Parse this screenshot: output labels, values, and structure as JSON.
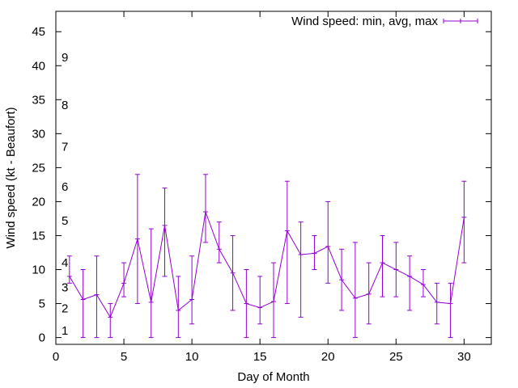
{
  "chart_data": {
    "type": "line",
    "error_bars": true,
    "xlabel": "Day of Month",
    "ylabel": "Wind speed (kt - Beaufort)",
    "xlim": [
      0,
      32
    ],
    "ylim": [
      -1,
      48
    ],
    "xticks": [
      "0",
      "5",
      "10",
      "15",
      "20",
      "25",
      "30"
    ],
    "yticks": [
      "0",
      "5",
      "10",
      "15",
      "20",
      "25",
      "30",
      "35",
      "40",
      "45"
    ],
    "beaufort_labels": [
      {
        "label": "1",
        "y": 1
      },
      {
        "label": "2",
        "y": 4.3
      },
      {
        "label": "3",
        "y": 7.4
      },
      {
        "label": "4",
        "y": 11
      },
      {
        "label": "5",
        "y": 17.2
      },
      {
        "label": "6",
        "y": 22.2
      },
      {
        "label": "7",
        "y": 28.1
      },
      {
        "label": "8",
        "y": 34.2
      },
      {
        "label": "9",
        "y": 41.2
      }
    ],
    "legend": {
      "placement": "top-right"
    },
    "color": "#9400d3",
    "series": [
      {
        "name": "Wind speed: min, avg, max",
        "points": [
          {
            "x": 1,
            "min": 8,
            "avg": 9,
            "max": 12
          },
          {
            "x": 2,
            "min": 0,
            "avg": 5.6,
            "max": 10
          },
          {
            "x": 3,
            "min": 0,
            "avg": 6.3,
            "max": 12
          },
          {
            "x": 4,
            "min": 0,
            "avg": 3,
            "max": 5
          },
          {
            "x": 5,
            "min": 6,
            "avg": 8,
            "max": 11
          },
          {
            "x": 6,
            "min": 5,
            "avg": 14.5,
            "max": 24
          },
          {
            "x": 7,
            "min": 0,
            "avg": 5.2,
            "max": 16
          },
          {
            "x": 8,
            "min": 9,
            "avg": 16.5,
            "max": 22
          },
          {
            "x": 9,
            "min": 0,
            "avg": 4,
            "max": 9
          },
          {
            "x": 10,
            "min": 2,
            "avg": 5.6,
            "max": 12
          },
          {
            "x": 11,
            "min": 14,
            "avg": 18.5,
            "max": 24
          },
          {
            "x": 12,
            "min": 11,
            "avg": 13,
            "max": 17
          },
          {
            "x": 13,
            "min": 4,
            "avg": 9.5,
            "max": 15
          },
          {
            "x": 14,
            "min": 0,
            "avg": 5,
            "max": 10
          },
          {
            "x": 15,
            "min": 2,
            "avg": 4.4,
            "max": 9
          },
          {
            "x": 16,
            "min": 0,
            "avg": 5.3,
            "max": 11
          },
          {
            "x": 17,
            "min": 5,
            "avg": 15.7,
            "max": 23
          },
          {
            "x": 18,
            "min": 3,
            "avg": 12.2,
            "max": 17
          },
          {
            "x": 19,
            "min": 10,
            "avg": 12.4,
            "max": 15
          },
          {
            "x": 20,
            "min": 8,
            "avg": 13.4,
            "max": 20
          },
          {
            "x": 21,
            "min": 4,
            "avg": 8.5,
            "max": 13
          },
          {
            "x": 22,
            "min": 0,
            "avg": 5.8,
            "max": 14
          },
          {
            "x": 23,
            "min": 2,
            "avg": 6.4,
            "max": 11
          },
          {
            "x": 24,
            "min": 6,
            "avg": 11,
            "max": 15
          },
          {
            "x": 25,
            "min": 6,
            "avg": 10,
            "max": 14
          },
          {
            "x": 26,
            "min": 4,
            "avg": 9,
            "max": 12
          },
          {
            "x": 27,
            "min": 6,
            "avg": 7.8,
            "max": 10
          },
          {
            "x": 28,
            "min": 2,
            "avg": 5.2,
            "max": 8
          },
          {
            "x": 29,
            "min": 0,
            "avg": 5,
            "max": 8
          },
          {
            "x": 30,
            "min": 11,
            "avg": 17.7,
            "max": 23
          }
        ]
      }
    ]
  }
}
